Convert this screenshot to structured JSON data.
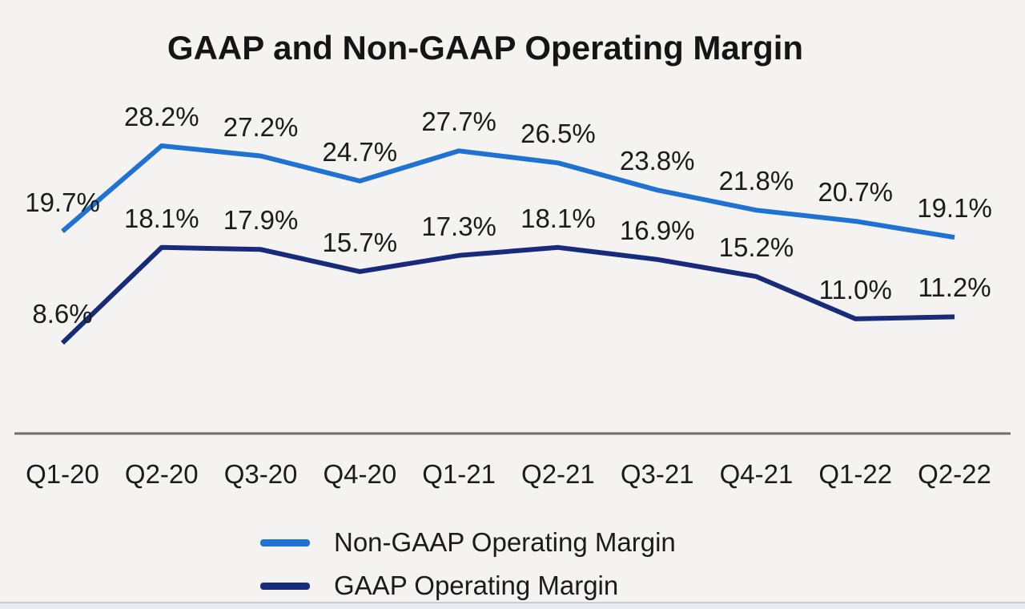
{
  "title": "GAAP and Non-GAAP Operating Margin",
  "colors": {
    "background": "#f4f3f1",
    "axis": "#6e6e6e",
    "text": "#1b1b1b",
    "non_gaap_blue": "#1f72d3",
    "gaap_navy": "#182b7a"
  },
  "chart_data": {
    "type": "line",
    "title": "GAAP and Non-GAAP Operating Margin",
    "categories": [
      "Q1-20",
      "Q2-20",
      "Q3-20",
      "Q4-20",
      "Q1-21",
      "Q2-21",
      "Q3-21",
      "Q4-21",
      "Q1-22",
      "Q2-22"
    ],
    "series": [
      {
        "name": "Non-GAAP Operating Margin",
        "color": "#1f72d3",
        "values": [
          19.7,
          28.2,
          27.2,
          24.7,
          27.7,
          26.5,
          23.8,
          21.8,
          20.7,
          19.1
        ],
        "labels": [
          "19.7%",
          "28.2%",
          "27.2%",
          "24.7%",
          "27.7%",
          "26.5%",
          "23.8%",
          "21.8%",
          "20.7%",
          "19.1%"
        ]
      },
      {
        "name": "GAAP Operating Margin",
        "color": "#182b7a",
        "values": [
          8.6,
          18.1,
          17.9,
          15.7,
          17.3,
          18.1,
          16.9,
          15.2,
          11.0,
          11.2
        ],
        "labels": [
          "8.6%",
          "18.1%",
          "17.9%",
          "15.7%",
          "17.3%",
          "18.1%",
          "16.9%",
          "15.2%",
          "11.0%",
          "11.2%"
        ]
      }
    ],
    "data_labels": true,
    "grid": false,
    "y_axis_shown": false,
    "ylim": [
      8,
      30
    ],
    "legend_position": "bottom"
  }
}
